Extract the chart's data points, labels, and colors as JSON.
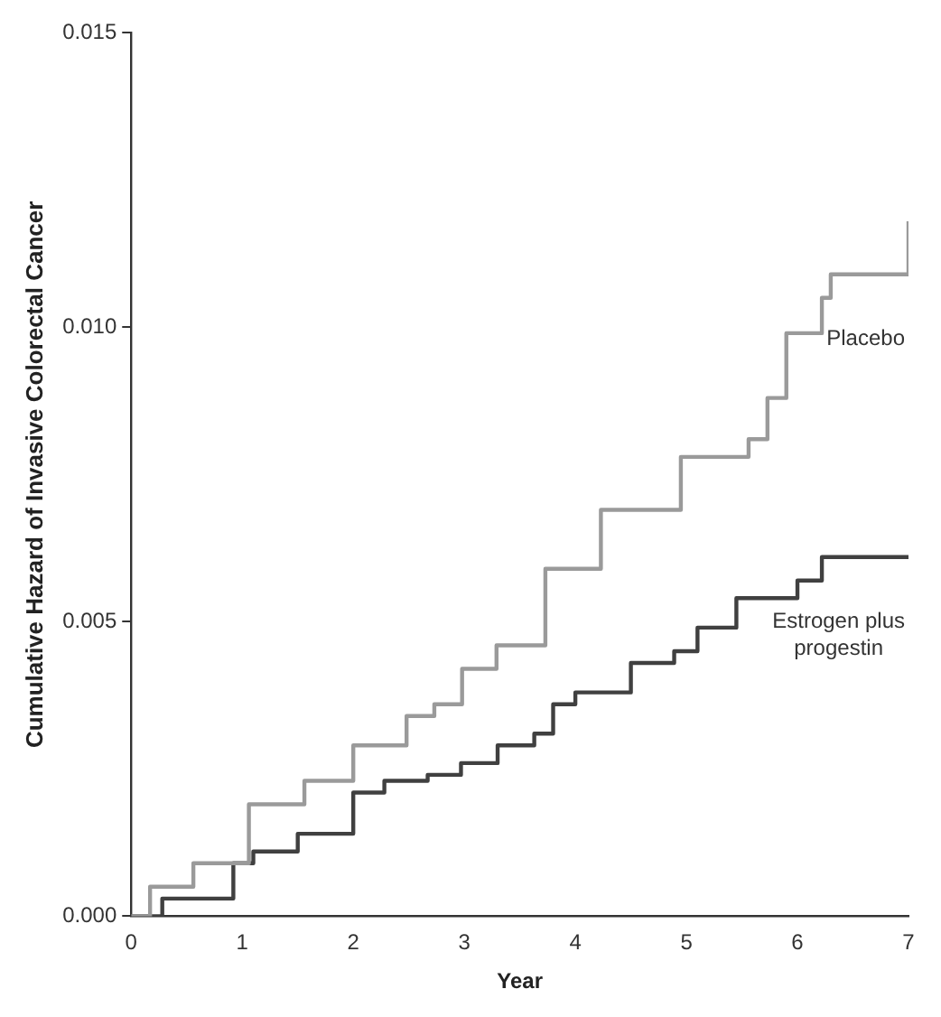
{
  "chart_data": {
    "type": "step",
    "xlabel": "Year",
    "ylabel": "Cumulative Hazard of Invasive Colorectal Cancer",
    "xlim": [
      0,
      7
    ],
    "xticks": [
      0,
      1,
      2,
      3,
      4,
      5,
      6,
      7
    ],
    "ylim": [
      0,
      0.015
    ],
    "yticks": [
      {
        "value": 0,
        "label": "0.000"
      },
      {
        "value": 0.005,
        "label": "0.005"
      },
      {
        "value": 0.01,
        "label": "0.010"
      },
      {
        "value": 0.015,
        "label": "0.015"
      }
    ],
    "grid": false,
    "legend": false,
    "marker": "none",
    "line_style": "solid",
    "series": [
      {
        "name": "Placebo",
        "color": "#9a9a9a",
        "x": [
          0,
          0.17,
          0.56,
          1.06,
          1.56,
          2.0,
          2.48,
          2.73,
          2.98,
          3.29,
          3.73,
          4.23,
          4.95,
          5.56,
          5.73,
          5.9,
          6.22,
          6.3,
          6.98,
          7
        ],
        "values": [
          0,
          0.0005,
          0.0009,
          0.0019,
          0.0023,
          0.0029,
          0.0034,
          0.0036,
          0.0042,
          0.0046,
          0.0059,
          0.0069,
          0.0078,
          0.0081,
          0.0088,
          0.0099,
          0.0105,
          0.0109,
          0.0109,
          0.0118
        ]
      },
      {
        "name": "Estrogen plus progestin",
        "color": "#404040",
        "x": [
          0,
          0.28,
          0.92,
          1.1,
          1.5,
          2.0,
          2.28,
          2.67,
          2.97,
          3.3,
          3.63,
          3.8,
          4.0,
          4.5,
          4.89,
          5.1,
          5.45,
          6.0,
          6.22,
          7
        ],
        "values": [
          0,
          0.0003,
          0.0009,
          0.0011,
          0.0014,
          0.0021,
          0.0023,
          0.0024,
          0.0026,
          0.0029,
          0.0031,
          0.0036,
          0.0038,
          0.0043,
          0.0045,
          0.0049,
          0.0054,
          0.0057,
          0.0061,
          0.0061
        ]
      }
    ]
  }
}
